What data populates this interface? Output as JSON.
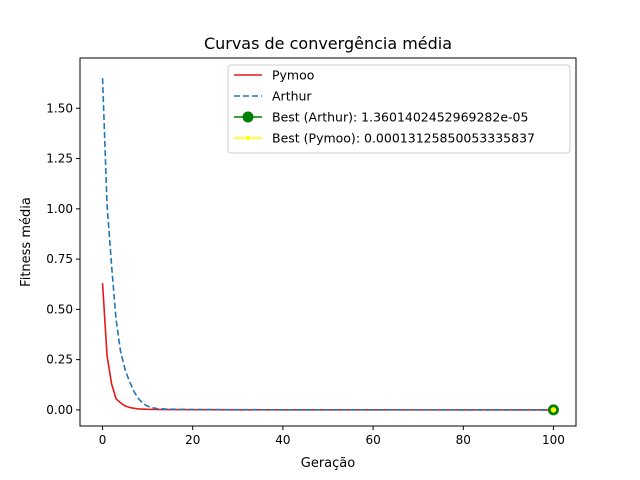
{
  "chart_data": {
    "type": "line",
    "title": "Curvas de convergência média",
    "xlabel": "Geração",
    "ylabel": "Fitness média",
    "xlim": [
      -5,
      105
    ],
    "ylim": [
      -0.08,
      1.75
    ],
    "xticks": [
      0,
      20,
      40,
      60,
      80,
      100
    ],
    "xtick_labels": [
      "0",
      "20",
      "40",
      "60",
      "80",
      "100"
    ],
    "yticks": [
      0.0,
      0.25,
      0.5,
      0.75,
      1.0,
      1.25,
      1.5
    ],
    "ytick_labels": [
      "0.00",
      "0.25",
      "0.50",
      "0.75",
      "1.00",
      "1.25",
      "1.50"
    ],
    "grid": false,
    "legend_position": "top-right",
    "series": [
      {
        "name": "Pymoo",
        "color": "#e41a1c",
        "style": "solid",
        "x": [
          0,
          1,
          2,
          3,
          4,
          5,
          6,
          7,
          8,
          10,
          12,
          15,
          20,
          30,
          40,
          50,
          60,
          70,
          80,
          90,
          100
        ],
        "y": [
          0.63,
          0.27,
          0.13,
          0.055,
          0.035,
          0.02,
          0.012,
          0.008,
          0.005,
          0.003,
          0.002,
          0.0015,
          0.001,
          0.0007,
          0.0005,
          0.0004,
          0.0003,
          0.0002,
          0.0002,
          0.00015,
          0.00013
        ]
      },
      {
        "name": "Arthur",
        "color": "#1f77b4",
        "style": "dashed",
        "x": [
          0,
          1,
          2,
          3,
          4,
          5,
          6,
          7,
          8,
          9,
          10,
          11,
          12,
          14,
          16,
          20,
          25,
          30,
          40,
          50,
          60,
          70,
          80,
          90,
          100
        ],
        "y": [
          1.65,
          1.02,
          0.72,
          0.45,
          0.29,
          0.2,
          0.14,
          0.09,
          0.055,
          0.032,
          0.018,
          0.011,
          0.007,
          0.004,
          0.003,
          0.002,
          0.0015,
          0.001,
          0.0007,
          0.0005,
          0.0003,
          0.0002,
          0.0001,
          5e-05,
          1.36e-05
        ]
      }
    ],
    "best_points": [
      {
        "name": "Best (Arthur): 1.3601402452969282e-05",
        "x": 100,
        "y": 1.36e-05,
        "color": "#008000",
        "marker": "large-circle"
      },
      {
        "name": "Best (Pymoo): 0.00013125850053335837",
        "x": 100,
        "y": 0.00013125850053335837,
        "color": "#ffff00",
        "marker": "small-star"
      }
    ]
  }
}
